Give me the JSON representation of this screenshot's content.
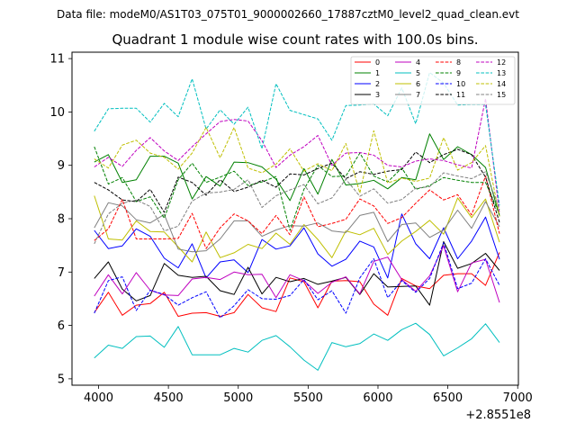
{
  "chart_data": {
    "type": "line",
    "suptitle": "Data file: modeM0/AS1T03_075T01_9000002660_17887cztM0_level2_quad_clean.evt",
    "title": "Quadrant 1 module wise count rates with 100.0s bins.",
    "xlabel": "",
    "ylabel": "",
    "x_offset_label": "+2.8551e8",
    "xlim": [
      3810,
      7005
    ],
    "ylim": [
      4.88,
      11.12
    ],
    "xticks": [
      4000,
      4500,
      5000,
      5500,
      6000,
      6500,
      7000
    ],
    "xtick_labels": [
      "4000",
      "4500",
      "5000",
      "5500",
      "6000",
      "6500",
      "7000"
    ],
    "yticks": [
      5,
      6,
      7,
      8,
      9,
      10,
      11
    ],
    "ytick_labels": [
      "5",
      "6",
      "7",
      "8",
      "9",
      "10",
      "11"
    ],
    "grid": false,
    "legend_position": "top-right",
    "x": [
      3970,
      4070,
      4170,
      4270,
      4370,
      4470,
      4570,
      4670,
      4770,
      4870,
      4970,
      5070,
      5170,
      5270,
      5370,
      5470,
      5570,
      5670,
      5770,
      5870,
      5970,
      6070,
      6170,
      6270,
      6370,
      6470,
      6570,
      6670,
      6770,
      6870
    ],
    "series": [
      {
        "name": "0",
        "color": "#ff0000",
        "dash": "solid",
        "values": [
          6.24,
          6.62,
          6.19,
          6.38,
          6.41,
          6.62,
          6.17,
          6.23,
          6.24,
          6.17,
          6.24,
          6.58,
          6.33,
          6.26,
          6.89,
          6.82,
          6.33,
          6.83,
          6.84,
          6.82,
          6.4,
          6.19,
          6.88,
          6.74,
          6.69,
          6.94,
          6.97,
          6.97,
          6.75,
          7.37
        ]
      },
      {
        "name": "1",
        "color": "#008000",
        "dash": "solid",
        "values": [
          9.06,
          9.2,
          8.68,
          8.73,
          9.17,
          9.17,
          9.04,
          8.37,
          8.79,
          8.61,
          9.06,
          9.05,
          8.97,
          8.74,
          8.34,
          8.94,
          8.46,
          9.11,
          8.63,
          8.66,
          8.72,
          8.56,
          8.77,
          8.73,
          9.59,
          9.11,
          9.35,
          9.2,
          8.96,
          8.05
        ]
      },
      {
        "name": "2",
        "color": "#0000ff",
        "dash": "solid",
        "values": [
          7.78,
          7.44,
          7.49,
          7.81,
          7.67,
          7.26,
          7.08,
          7.53,
          6.89,
          7.19,
          7.23,
          6.99,
          7.61,
          7.43,
          7.49,
          7.83,
          7.34,
          7.11,
          7.24,
          7.58,
          7.47,
          6.89,
          8.09,
          7.53,
          7.25,
          7.83,
          7.25,
          7.58,
          8.03,
          7.24
        ]
      },
      {
        "name": "3",
        "color": "#000000",
        "dash": "solid",
        "values": [
          6.88,
          7.19,
          6.68,
          6.46,
          6.56,
          7.16,
          6.94,
          6.9,
          6.92,
          6.65,
          6.58,
          7.09,
          6.59,
          6.9,
          6.82,
          6.88,
          6.77,
          6.83,
          6.9,
          6.58,
          6.97,
          6.72,
          6.73,
          6.74,
          6.38,
          7.57,
          7.07,
          7.16,
          7.35,
          7.03
        ]
      },
      {
        "name": "4",
        "color": "#bf00bf",
        "dash": "solid",
        "values": [
          6.55,
          6.95,
          6.59,
          6.99,
          6.66,
          6.57,
          6.56,
          6.87,
          6.9,
          6.86,
          7.0,
          6.95,
          6.96,
          6.52,
          6.95,
          6.84,
          6.6,
          6.81,
          6.91,
          6.59,
          7.2,
          7.28,
          6.86,
          6.64,
          6.93,
          7.49,
          6.63,
          7.17,
          7.24,
          6.43
        ]
      },
      {
        "name": "5",
        "color": "#00bfbf",
        "dash": "solid",
        "values": [
          5.39,
          5.63,
          5.57,
          5.79,
          5.8,
          5.59,
          5.98,
          5.45,
          5.45,
          5.45,
          5.57,
          5.5,
          5.72,
          5.81,
          5.6,
          5.35,
          5.16,
          5.68,
          5.6,
          5.66,
          5.84,
          5.72,
          5.92,
          6.04,
          5.83,
          5.43,
          5.58,
          5.75,
          6.03,
          5.68
        ]
      },
      {
        "name": "6",
        "color": "#bfbf00",
        "dash": "solid",
        "values": [
          8.43,
          7.62,
          7.6,
          7.96,
          7.76,
          7.75,
          7.47,
          7.19,
          7.75,
          7.27,
          7.36,
          7.52,
          7.44,
          7.73,
          7.52,
          7.89,
          7.61,
          7.27,
          7.77,
          7.7,
          7.82,
          7.33,
          7.58,
          7.76,
          7.97,
          7.71,
          8.39,
          8.02,
          8.37,
          7.56
        ]
      },
      {
        "name": "7",
        "color": "#808080",
        "dash": "solid",
        "values": [
          7.83,
          8.3,
          8.24,
          7.98,
          7.92,
          8.08,
          7.43,
          7.38,
          7.4,
          7.62,
          7.96,
          7.96,
          7.67,
          7.79,
          7.87,
          7.86,
          7.92,
          7.77,
          7.74,
          8.06,
          8.12,
          7.57,
          7.89,
          7.92,
          7.65,
          7.79,
          8.16,
          7.82,
          8.32,
          7.85
        ]
      },
      {
        "name": "8",
        "color": "#ff0000",
        "dash": "dashed",
        "values": [
          7.59,
          7.81,
          8.36,
          7.62,
          7.62,
          7.62,
          7.63,
          8.1,
          7.44,
          7.83,
          8.09,
          7.96,
          7.72,
          8.06,
          7.7,
          8.41,
          7.85,
          7.91,
          7.99,
          8.37,
          8.24,
          7.91,
          8.02,
          8.29,
          8.54,
          8.35,
          8.45,
          8.07,
          8.8,
          7.72
        ]
      },
      {
        "name": "9",
        "color": "#008000",
        "dash": "dashed",
        "values": [
          9.35,
          8.65,
          8.77,
          8.32,
          8.41,
          8.01,
          8.73,
          9.04,
          8.68,
          8.78,
          8.89,
          8.62,
          8.69,
          8.79,
          7.78,
          8.55,
          9.0,
          8.79,
          8.8,
          9.23,
          8.8,
          8.69,
          8.95,
          8.55,
          8.62,
          8.77,
          8.72,
          8.68,
          8.68,
          8.08
        ]
      },
      {
        "name": "10",
        "color": "#0000ff",
        "dash": "dashed",
        "values": [
          6.23,
          6.84,
          6.91,
          6.28,
          6.66,
          6.58,
          6.38,
          6.52,
          6.63,
          6.14,
          6.37,
          6.67,
          6.5,
          6.49,
          6.56,
          6.86,
          6.48,
          6.65,
          6.23,
          6.89,
          7.25,
          6.52,
          6.84,
          6.62,
          6.88,
          7.55,
          6.69,
          6.79,
          7.25,
          6.75
        ]
      },
      {
        "name": "11",
        "color": "#000000",
        "dash": "dashed",
        "values": [
          8.68,
          8.54,
          8.35,
          8.32,
          8.55,
          8.12,
          8.78,
          8.68,
          8.44,
          8.73,
          8.51,
          8.59,
          8.72,
          8.59,
          8.84,
          8.82,
          8.94,
          9.04,
          8.75,
          8.88,
          8.83,
          8.89,
          8.92,
          9.25,
          9.05,
          9.2,
          9.3,
          9.2,
          8.78,
          7.93
        ]
      },
      {
        "name": "12",
        "color": "#bf00bf",
        "dash": "dashed",
        "values": [
          8.97,
          9.15,
          8.98,
          9.28,
          9.52,
          9.27,
          9.09,
          9.35,
          9.59,
          9.82,
          9.86,
          9.83,
          9.46,
          8.96,
          9.19,
          9.35,
          9.56,
          9.0,
          9.23,
          9.24,
          9.19,
          9.0,
          8.97,
          9.08,
          9.12,
          9.09,
          9.01,
          8.95,
          10.25,
          8.1
        ]
      },
      {
        "name": "13",
        "color": "#00bfbf",
        "dash": "dashed",
        "values": [
          9.64,
          10.06,
          10.07,
          10.07,
          9.81,
          10.16,
          9.91,
          10.62,
          9.68,
          10.04,
          9.77,
          10.09,
          9.31,
          10.53,
          10.03,
          9.95,
          9.87,
          9.47,
          10.12,
          10.13,
          10.15,
          9.93,
          10.45,
          9.78,
          10.74,
          10.54,
          10.13,
          10.14,
          10.14,
          8.25
        ]
      },
      {
        "name": "14",
        "color": "#bfbf00",
        "dash": "dashed",
        "values": [
          9.12,
          8.95,
          9.38,
          9.47,
          9.23,
          9.15,
          8.93,
          9.23,
          9.71,
          9.14,
          9.71,
          8.95,
          8.86,
          9.02,
          9.31,
          8.89,
          9.03,
          8.9,
          9.41,
          8.48,
          9.65,
          8.67,
          8.76,
          8.7,
          8.76,
          9.52,
          8.91,
          9.05,
          9.37,
          8.04
        ]
      },
      {
        "name": "15",
        "color": "#808080",
        "dash": "dashed",
        "values": [
          7.53,
          8.09,
          8.29,
          8.35,
          8.23,
          7.77,
          7.86,
          8.33,
          8.48,
          8.5,
          8.55,
          8.73,
          8.21,
          8.43,
          8.54,
          8.64,
          8.28,
          8.39,
          8.74,
          8.42,
          8.56,
          8.29,
          8.36,
          8.57,
          8.6,
          8.86,
          8.8,
          8.75,
          8.88,
          8.17
        ]
      }
    ]
  }
}
